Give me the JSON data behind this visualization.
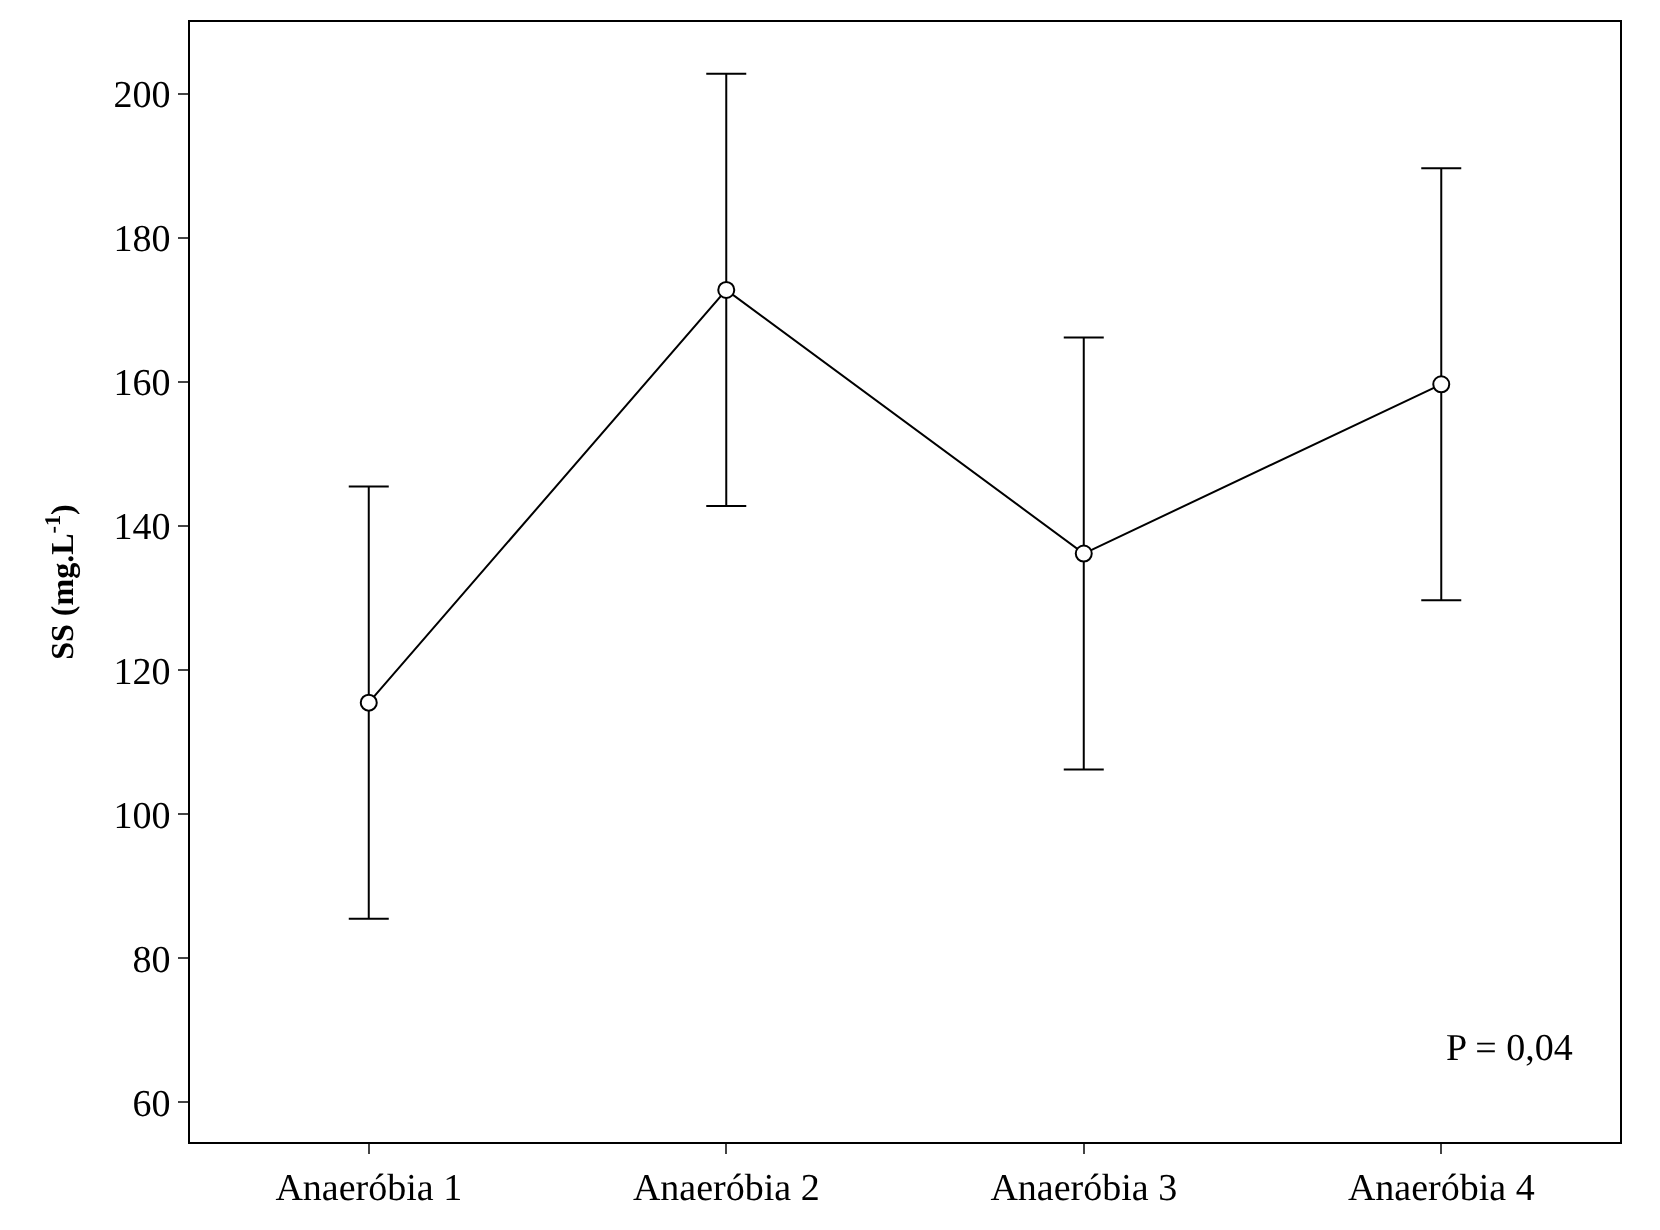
{
  "chart_data": {
    "type": "line",
    "ylabel": "SS (mg.L$^{-1}$)",
    "categories": [
      "Anaeróbia 1",
      "Anaeróbia 2",
      "Anaeróbia 3",
      "Anaeróbia 4"
    ],
    "series": [
      {
        "color": "#000000",
        "values": [
          115.5,
          172.8,
          136.2,
          159.7
        ],
        "errors": [
          30,
          30,
          30,
          30
        ]
      }
    ],
    "ylim": [
      54.5,
      210
    ],
    "yticks": [
      60,
      80,
      100,
      120,
      140,
      160,
      180,
      200
    ],
    "marker": "circle",
    "line_style": "solid",
    "annotations": [
      "P = 0,04"
    ]
  }
}
